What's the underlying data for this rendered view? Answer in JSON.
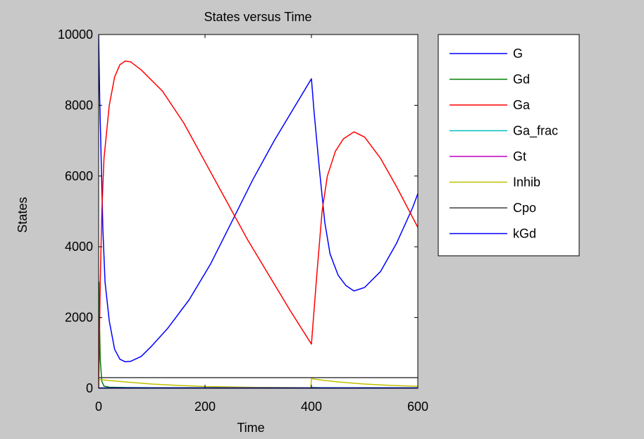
{
  "chart_data": {
    "type": "line",
    "title": "States versus Time",
    "xlabel": "Time",
    "ylabel": "States",
    "xlim": [
      0,
      600
    ],
    "ylim": [
      0,
      10000
    ],
    "xticks": [
      0,
      200,
      400,
      600
    ],
    "yticks": [
      0,
      2000,
      4000,
      6000,
      8000,
      10000
    ],
    "grid": false,
    "legend_position": "outside-right",
    "series": [
      {
        "name": "G",
        "color": "#0000ff",
        "points": [
          [
            0,
            10000
          ],
          [
            2,
            8200
          ],
          [
            5,
            6300
          ],
          [
            8,
            4500
          ],
          [
            12,
            3000
          ],
          [
            20,
            1900
          ],
          [
            30,
            1100
          ],
          [
            40,
            820
          ],
          [
            50,
            750
          ],
          [
            60,
            760
          ],
          [
            80,
            900
          ],
          [
            100,
            1200
          ],
          [
            130,
            1700
          ],
          [
            170,
            2500
          ],
          [
            210,
            3500
          ],
          [
            250,
            4700
          ],
          [
            290,
            5900
          ],
          [
            330,
            7000
          ],
          [
            370,
            8000
          ],
          [
            400,
            8750
          ],
          [
            405,
            7800
          ],
          [
            415,
            6200
          ],
          [
            425,
            4700
          ],
          [
            435,
            3800
          ],
          [
            450,
            3200
          ],
          [
            465,
            2900
          ],
          [
            480,
            2750
          ],
          [
            500,
            2850
          ],
          [
            530,
            3300
          ],
          [
            560,
            4100
          ],
          [
            590,
            5100
          ],
          [
            600,
            5500
          ]
        ]
      },
      {
        "name": "Gd",
        "color": "#008000",
        "points": [
          [
            0,
            0
          ],
          [
            0.5,
            3000
          ],
          [
            1.5,
            2000
          ],
          [
            3,
            800
          ],
          [
            6,
            200
          ],
          [
            10,
            60
          ],
          [
            20,
            30
          ],
          [
            50,
            20
          ],
          [
            100,
            15
          ],
          [
            400,
            12
          ],
          [
            401,
            20
          ],
          [
            420,
            15
          ],
          [
            600,
            10
          ]
        ]
      },
      {
        "name": "Ga",
        "color": "#ff0000",
        "points": [
          [
            0,
            0
          ],
          [
            3,
            3000
          ],
          [
            6,
            5000
          ],
          [
            10,
            6500
          ],
          [
            20,
            8000
          ],
          [
            30,
            8800
          ],
          [
            40,
            9150
          ],
          [
            50,
            9250
          ],
          [
            60,
            9230
          ],
          [
            80,
            9000
          ],
          [
            120,
            8400
          ],
          [
            160,
            7500
          ],
          [
            200,
            6400
          ],
          [
            240,
            5300
          ],
          [
            280,
            4200
          ],
          [
            320,
            3200
          ],
          [
            360,
            2200
          ],
          [
            400,
            1250
          ],
          [
            410,
            3200
          ],
          [
            420,
            5000
          ],
          [
            430,
            6000
          ],
          [
            445,
            6700
          ],
          [
            460,
            7050
          ],
          [
            480,
            7250
          ],
          [
            500,
            7100
          ],
          [
            530,
            6500
          ],
          [
            560,
            5700
          ],
          [
            600,
            4550
          ]
        ]
      },
      {
        "name": "Ga_frac",
        "color": "#00bfbf",
        "points": [
          [
            0,
            0
          ],
          [
            600,
            0
          ]
        ]
      },
      {
        "name": "Gt",
        "color": "#bf00bf",
        "points": [
          [
            0,
            0
          ],
          [
            600,
            0
          ]
        ]
      },
      {
        "name": "Inhib",
        "color": "#bfbf00",
        "points": [
          [
            0,
            250
          ],
          [
            20,
            220
          ],
          [
            50,
            180
          ],
          [
            100,
            120
          ],
          [
            150,
            80
          ],
          [
            200,
            50
          ],
          [
            300,
            25
          ],
          [
            399,
            15
          ],
          [
            400,
            270
          ],
          [
            420,
            230
          ],
          [
            450,
            180
          ],
          [
            500,
            120
          ],
          [
            550,
            80
          ],
          [
            600,
            55
          ]
        ]
      },
      {
        "name": "Cpo",
        "color": "#404040",
        "points": [
          [
            0,
            300
          ],
          [
            600,
            300
          ]
        ]
      },
      {
        "name": "kGd",
        "color": "#0000ff",
        "points": [
          [
            0,
            10
          ],
          [
            600,
            10
          ]
        ]
      }
    ]
  }
}
